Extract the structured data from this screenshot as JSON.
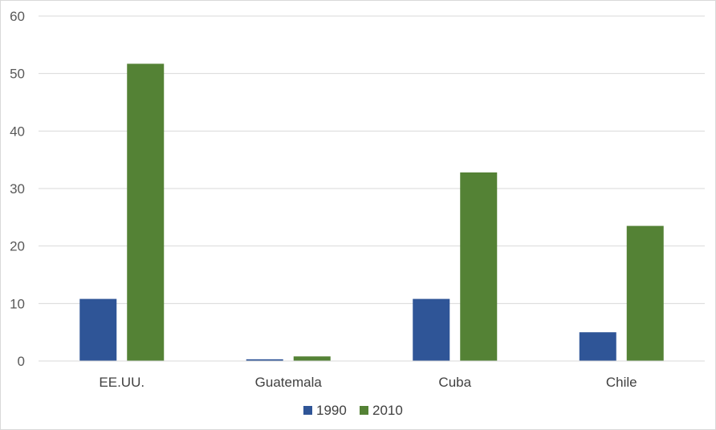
{
  "chart_data": {
    "type": "bar",
    "categories": [
      "EE.UU.",
      "Guatemala",
      "Cuba",
      "Chile"
    ],
    "series": [
      {
        "name": "1990",
        "color": "#2F5597",
        "values": [
          10.8,
          0.3,
          10.8,
          5.0
        ]
      },
      {
        "name": "2010",
        "color": "#548235",
        "values": [
          51.7,
          0.8,
          32.8,
          23.5
        ]
      }
    ],
    "ylim": [
      0,
      60
    ],
    "yticks": [
      0,
      10,
      20,
      30,
      40,
      50,
      60
    ],
    "grid": true,
    "legend_position": "bottom",
    "title": "",
    "xlabel": "",
    "ylabel": ""
  }
}
